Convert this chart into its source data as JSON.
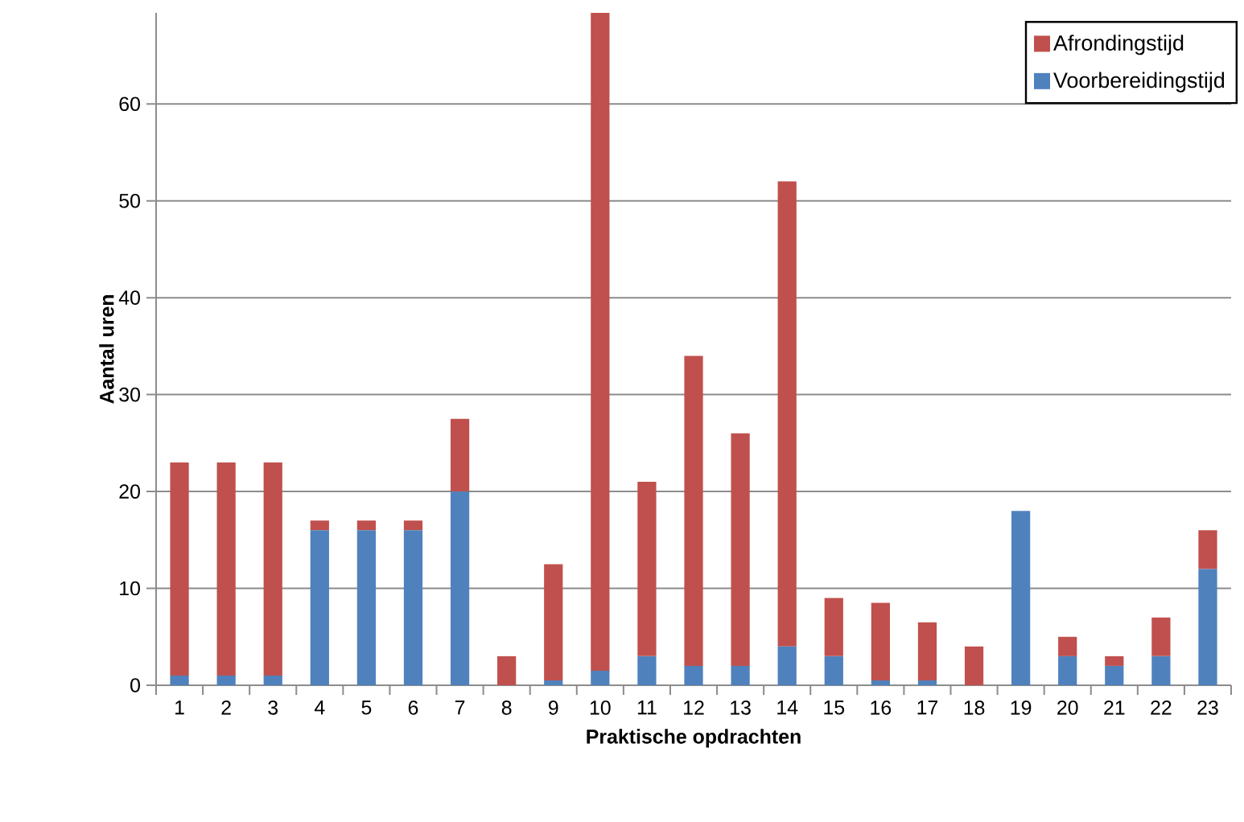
{
  "chart_data": {
    "type": "bar",
    "stacked": true,
    "xlabel": "Praktische opdrachten",
    "ylabel": "Aantal uren",
    "categories": [
      "1",
      "2",
      "3",
      "4",
      "5",
      "6",
      "7",
      "8",
      "9",
      "10",
      "11",
      "12",
      "13",
      "14",
      "15",
      "16",
      "17",
      "18",
      "19",
      "20",
      "21",
      "22",
      "23"
    ],
    "series": [
      {
        "name": "Voorbereidingstijd",
        "color": "#4f81bd",
        "values": [
          1,
          1,
          1,
          16,
          16,
          16,
          20,
          0,
          0.5,
          1.5,
          3,
          2,
          2,
          4,
          3,
          0.5,
          0.5,
          0,
          18,
          3,
          2,
          3,
          12
        ]
      },
      {
        "name": "Afrondingstijd",
        "color": "#c0504d",
        "values": [
          22,
          22,
          22,
          1,
          1,
          1,
          7.5,
          3,
          12,
          67.9,
          18,
          32,
          24,
          48,
          6,
          8,
          6,
          4,
          0,
          2,
          1,
          4,
          4
        ]
      }
    ],
    "ylim": [
      0,
      69.4
    ],
    "yticks": [
      0,
      10,
      20,
      30,
      40,
      50,
      60
    ],
    "grid": "y",
    "legend": "top right"
  }
}
